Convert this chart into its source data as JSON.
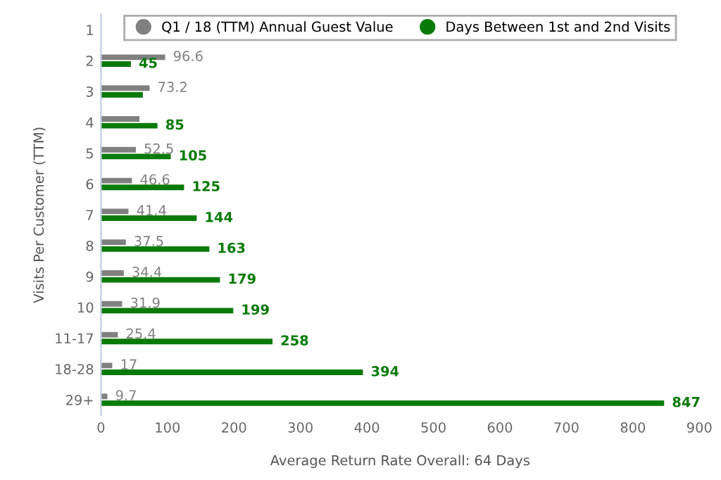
{
  "chart_data": {
    "type": "bar",
    "orientation": "horizontal",
    "xlabel": "Average Return Rate Overall: 64 Days",
    "ylabel": "Visits Per Customer (TTM)",
    "categories": [
      "1",
      "2",
      "3",
      "4",
      "5",
      "6",
      "7",
      "8",
      "9",
      "10",
      "11-17",
      "18-28",
      "29+"
    ],
    "series": [
      {
        "name": "Q1 / 18 (TTM) Annual Guest Value",
        "color": "#808080",
        "values": [
          null,
          96.6,
          73.2,
          58,
          52.5,
          46.6,
          41.4,
          37.5,
          34.4,
          31.9,
          25.4,
          17,
          9.7
        ],
        "value_labels": [
          null,
          "96.6",
          "73.2",
          null,
          "52.5",
          "46.6",
          "41.4",
          "37.5",
          "34.4",
          "31.9",
          "25.4",
          "17",
          "9.7"
        ]
      },
      {
        "name": "Days Between 1st and 2nd Visits",
        "color": "#087a08",
        "values": [
          null,
          45,
          63,
          85,
          105,
          125,
          144,
          163,
          179,
          199,
          258,
          394,
          847
        ],
        "value_labels": [
          null,
          "45",
          null,
          "85",
          "105",
          "125",
          "144",
          "163",
          "179",
          "199",
          "258",
          "394",
          "847"
        ]
      }
    ],
    "xlim": [
      0,
      900
    ],
    "xticks": [
      0,
      100,
      200,
      300,
      400,
      500,
      600,
      700,
      800,
      900
    ],
    "grid": false,
    "legend": "top",
    "marker": "circle"
  }
}
